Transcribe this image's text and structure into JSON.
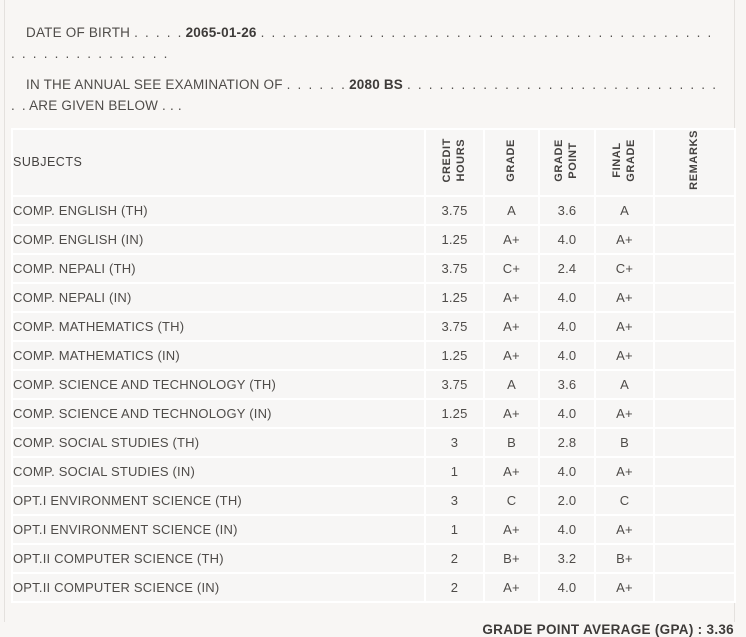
{
  "header_info": {
    "dob_label": "DATE OF BIRTH",
    "dob_dots_before": ". . . . .",
    "dob_value": "2065-01-26",
    "dob_dots_after": ". . . . . . . . . . . . . . . . . . . . . . . . . . . . . . . . . . . . . . . . . . . . . . . . . . . . . . . . .",
    "exam_label": "IN THE ANNUAL SEE EXAMINATION OF",
    "exam_dots_before": ". . . . . .",
    "exam_value": "2080 BS",
    "exam_dots_after": ". . . . . . . . . . . . . . . . . . . . . . . . . . . . . . .",
    "exam_suffix": "ARE GIVEN BELOW . . ."
  },
  "table": {
    "headers": {
      "subjects": "SUBJECTS",
      "credit_hours": "CREDIT\nHOURS",
      "grade": "GRADE",
      "grade_point": "GRADE\nPOINT",
      "final_grade": "FINAL\nGRADE",
      "remarks": "REMARKS"
    },
    "rows": [
      {
        "subject": "COMP. ENGLISH (TH)",
        "credit": "3.75",
        "grade": "A",
        "point": "3.6",
        "final": "A",
        "remarks": ""
      },
      {
        "subject": "COMP. ENGLISH (IN)",
        "credit": "1.25",
        "grade": "A+",
        "point": "4.0",
        "final": "A+",
        "remarks": ""
      },
      {
        "subject": "COMP. NEPALI (TH)",
        "credit": "3.75",
        "grade": "C+",
        "point": "2.4",
        "final": "C+",
        "remarks": ""
      },
      {
        "subject": "COMP. NEPALI (IN)",
        "credit": "1.25",
        "grade": "A+",
        "point": "4.0",
        "final": "A+",
        "remarks": ""
      },
      {
        "subject": "COMP. MATHEMATICS (TH)",
        "credit": "3.75",
        "grade": "A+",
        "point": "4.0",
        "final": "A+",
        "remarks": ""
      },
      {
        "subject": "COMP. MATHEMATICS (IN)",
        "credit": "1.25",
        "grade": "A+",
        "point": "4.0",
        "final": "A+",
        "remarks": ""
      },
      {
        "subject": "COMP. SCIENCE AND TECHNOLOGY (TH)",
        "credit": "3.75",
        "grade": "A",
        "point": "3.6",
        "final": "A",
        "remarks": ""
      },
      {
        "subject": "COMP. SCIENCE AND TECHNOLOGY (IN)",
        "credit": "1.25",
        "grade": "A+",
        "point": "4.0",
        "final": "A+",
        "remarks": ""
      },
      {
        "subject": "COMP. SOCIAL STUDIES (TH)",
        "credit": "3",
        "grade": "B",
        "point": "2.8",
        "final": "B",
        "remarks": ""
      },
      {
        "subject": "COMP. SOCIAL STUDIES (IN)",
        "credit": "1",
        "grade": "A+",
        "point": "4.0",
        "final": "A+",
        "remarks": ""
      },
      {
        "subject": "OPT.I ENVIRONMENT SCIENCE (TH)",
        "credit": "3",
        "grade": "C",
        "point": "2.0",
        "final": "C",
        "remarks": ""
      },
      {
        "subject": "OPT.I ENVIRONMENT SCIENCE (IN)",
        "credit": "1",
        "grade": "A+",
        "point": "4.0",
        "final": "A+",
        "remarks": ""
      },
      {
        "subject": "OPT.II COMPUTER SCIENCE (TH)",
        "credit": "2",
        "grade": "B+",
        "point": "3.2",
        "final": "B+",
        "remarks": ""
      },
      {
        "subject": "OPT.II COMPUTER SCIENCE (IN)",
        "credit": "2",
        "grade": "A+",
        "point": "4.0",
        "final": "A+",
        "remarks": ""
      }
    ]
  },
  "footer": {
    "gpa_label": "GRADE POINT AVERAGE (GPA) : ",
    "gpa_value": "3.36"
  }
}
